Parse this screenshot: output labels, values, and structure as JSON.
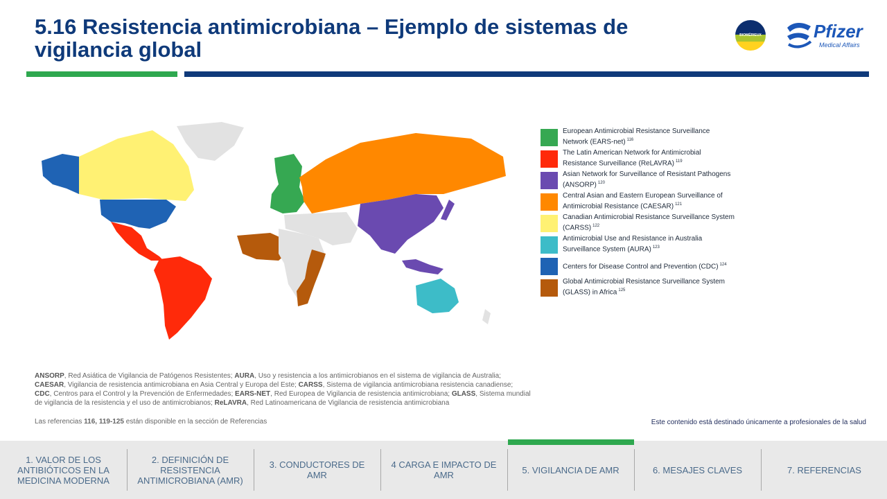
{
  "slide": {
    "title": "5.16 Resistencia antimicrobiana – Ejemplo de sistemas de vigilancia global"
  },
  "logos": {
    "biomerieux": "BIOMÉRIEUX",
    "pfizer": "Pfizer",
    "pfizer_sub": "Medical Affairs"
  },
  "legend": [
    {
      "color": "#36a852",
      "text": "European Antimicrobial Resistance Surveillance Network (EARS-net)",
      "ref": "116"
    },
    {
      "color": "#ff2a0a",
      "text": "The Latin American Network for Antimicrobial Resistance Surveillance (ReLAVRA)",
      "ref": "119"
    },
    {
      "color": "#6a4ab0",
      "text": "Asian Network for Surveillance of Resistant Pathogens (ANSORP)",
      "ref": "120"
    },
    {
      "color": "#ff8800",
      "text": "Central Asian and Eastern European Surveillance of Antimicrobial Resistance (CAESAR)",
      "ref": "121"
    },
    {
      "color": "#fff173",
      "text": "Canadian Antimicrobial Resistance Surveillance System (CARSS)",
      "ref": "122"
    },
    {
      "color": "#3dbcc8",
      "text": "Antimicrobial Use and Resistance in Australia Surveillance System (AURA)",
      "ref": "123"
    },
    {
      "color": "#1f63b4",
      "text": "Centers for Disease Control and Prevention (CDC)",
      "ref": "124"
    },
    {
      "color": "#b55a0c",
      "text": "Global Antimicrobial Resistance Surveillance System (GLASS) in Africa",
      "ref": "125"
    }
  ],
  "notes": {
    "line1_b1": "ANSORP",
    "line1_t1": ", Red Asiática de Vigilancia de Patógenos Resistentes; ",
    "line1_b2": "AURA",
    "line1_t2": ", Uso y resistencia a los antimicrobianos en el sistema de vigilancia de Australia;",
    "line2_b1": "CAESAR",
    "line2_t1": ", Vigilancia de resistencia antimicrobiana en Asia Central y Europa del Este; ",
    "line2_b2": "CARSS",
    "line2_t2": ", Sistema de vigilancia antimicrobiana resistencia canadiense;",
    "line3_b1": "CDC",
    "line3_t1": ", Centros para el Control y la Prevención de Enfermedades; ",
    "line3_b2": "EARS-NET",
    "line3_t2": ", Red Europea de Vigilancia de resistencia antimicrobiana; ",
    "line3_b3": "GLASS",
    "line3_t3": ", Sistema mundial",
    "line4_t1": "de vigilancia de la resistencia y el uso de antimicrobianos; ",
    "line4_b1": "ReLAVRA",
    "line4_t2": ", Red Latinoamericana de Vigilancia de resistencia antimicrobiana"
  },
  "references": {
    "pre": "Las referencias ",
    "bold": "116, 119-125",
    "post": " están disponible en la sección de Referencias"
  },
  "disclaimer": "Este contenido está destinado únicamente a profesionales de la salud",
  "nav": [
    {
      "label": "1. VALOR DE LOS ANTIBIÓTICOS EN LA MEDICINA MODERNA"
    },
    {
      "label": "2. DEFINICIÓN DE RESISTENCIA ANTIMICROBIANA (AMR)"
    },
    {
      "label": "3. CONDUCTORES DE AMR"
    },
    {
      "label": "4 CARGA E IMPACTO DE AMR"
    },
    {
      "label": "5. VIGILANCIA DE AMR",
      "active": true
    },
    {
      "label": "6. MESAJES CLAVES"
    },
    {
      "label": "7. REFERENCIAS"
    }
  ]
}
